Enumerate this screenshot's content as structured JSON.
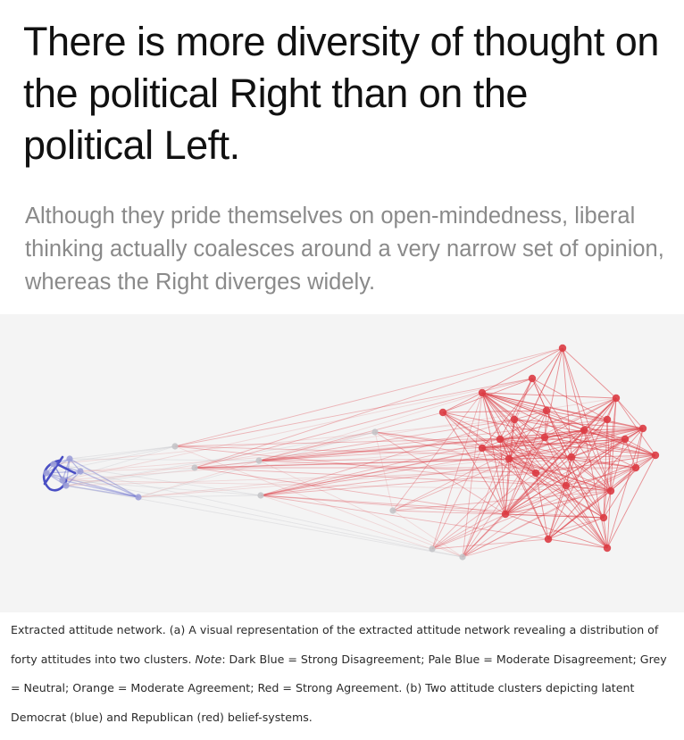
{
  "headline": "There is more diversity of thought on the political Right than on the political Left.",
  "subhead": "Although they pride themselves on open-mindedness, liberal thinking actually coalesces around a very narrow set of opinion, whereas the Right diverges widely.",
  "caption": {
    "part1": "Extracted attitude network. (a) A visual representation of the extracted attitude network revealing a distribution of forty attitudes into two clusters. ",
    "note_label": "Note",
    "part2": ": Dark Blue = Strong Disagreement; Pale Blue = Moderate Disagreement; Grey = Neutral; Orange = Moderate Agreement; Red = Strong Agreement. (b) Two attitude clusters depicting latent Democrat (blue) and Republican (red) belief-systems."
  },
  "colors": {
    "strong_disagreement": "#4a4fc4",
    "moderate_disagreement": "#9da0d8",
    "neutral": "#c4c4c8",
    "moderate_agreement": "#e5a0a4",
    "strong_agreement": "#dc3c44"
  }
}
